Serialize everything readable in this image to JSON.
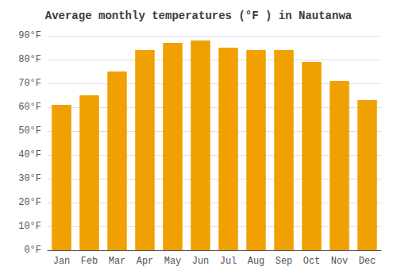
{
  "chart_data": {
    "type": "bar",
    "title": "Average monthly temperatures (°F ) in Nautanwa",
    "categories": [
      "Jan",
      "Feb",
      "Mar",
      "Apr",
      "May",
      "Jun",
      "Jul",
      "Aug",
      "Sep",
      "Oct",
      "Nov",
      "Dec"
    ],
    "values": [
      61,
      65,
      75,
      84,
      87,
      88,
      85,
      84,
      84,
      79,
      71,
      63
    ],
    "color": "#F0A000",
    "ylim": [
      0,
      90
    ],
    "yticks": [
      {
        "value": 0,
        "label": "0°F"
      },
      {
        "value": 10,
        "label": "10°F"
      },
      {
        "value": 20,
        "label": "20°F"
      },
      {
        "value": 30,
        "label": "30°F"
      },
      {
        "value": 40,
        "label": "40°F"
      },
      {
        "value": 50,
        "label": "50°F"
      },
      {
        "value": 60,
        "label": "60°F"
      },
      {
        "value": 70,
        "label": "70°F"
      },
      {
        "value": 80,
        "label": "80°F"
      },
      {
        "value": 90,
        "label": "90°F"
      }
    ],
    "grid": true
  }
}
